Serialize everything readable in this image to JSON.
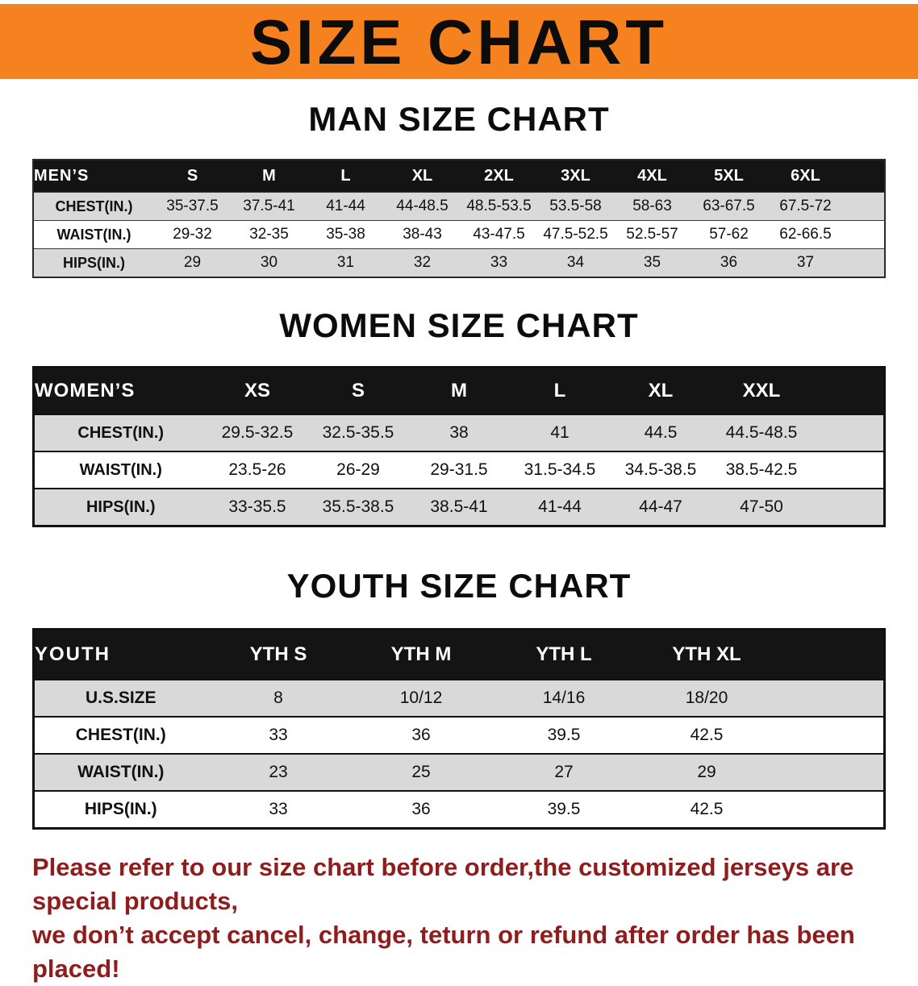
{
  "banner": {
    "title": "SIZE CHART"
  },
  "colors": {
    "banner_bg": "#F5821F",
    "header_bar": "#141414",
    "shaded_row": "#D9D9D9",
    "footer_text": "#8F1D1D"
  },
  "sections": [
    {
      "heading": "MAN SIZE CHART",
      "table_label": "MEN’S",
      "columns": [
        "S",
        "M",
        "L",
        "XL",
        "2XL",
        "3XL",
        "4XL",
        "5XL",
        "6XL"
      ],
      "rows": [
        {
          "label": "CHEST(IN.)",
          "values": [
            "35-37.5",
            "37.5-41",
            "41-44",
            "44-48.5",
            "48.5-53.5",
            "53.5-58",
            "58-63",
            "63-67.5",
            "67.5-72"
          ]
        },
        {
          "label": "WAIST(IN.)",
          "values": [
            "29-32",
            "32-35",
            "35-38",
            "38-43",
            "43-47.5",
            "47.5-52.5",
            "52.5-57",
            "57-62",
            "62-66.5"
          ]
        },
        {
          "label": "HIPS(IN.)",
          "values": [
            "29",
            "30",
            "31",
            "32",
            "33",
            "34",
            "35",
            "36",
            "37"
          ]
        }
      ]
    },
    {
      "heading": "WOMEN SIZE CHART",
      "table_label": "WOMEN’S",
      "columns": [
        "XS",
        "S",
        "M",
        "L",
        "XL",
        "XXL"
      ],
      "rows": [
        {
          "label": "CHEST(IN.)",
          "values": [
            "29.5-32.5",
            "32.5-35.5",
            "38",
            "41",
            "44.5",
            "44.5-48.5"
          ]
        },
        {
          "label": "WAIST(IN.)",
          "values": [
            "23.5-26",
            "26-29",
            "29-31.5",
            "31.5-34.5",
            "34.5-38.5",
            "38.5-42.5"
          ]
        },
        {
          "label": "HIPS(IN.)",
          "values": [
            "33-35.5",
            "35.5-38.5",
            "38.5-41",
            "41-44",
            "44-47",
            "47-50"
          ]
        }
      ]
    },
    {
      "heading": "YOUTH SIZE CHART",
      "table_label": "YOUTH",
      "columns": [
        "YTH S",
        "YTH M",
        "YTH L",
        "YTH XL"
      ],
      "rows": [
        {
          "label": "U.S.SIZE",
          "values": [
            "8",
            "10/12",
            "14/16",
            "18/20"
          ]
        },
        {
          "label": "CHEST(IN.)",
          "values": [
            "33",
            "36",
            "39.5",
            "42.5"
          ]
        },
        {
          "label": "WAIST(IN.)",
          "values": [
            "23",
            "25",
            "27",
            "29"
          ]
        },
        {
          "label": "HIPS(IN.)",
          "values": [
            "33",
            "36",
            "39.5",
            "42.5"
          ]
        }
      ]
    }
  ],
  "footer": {
    "line1": "Please refer to our size chart before order,the customized jerseys are special products,",
    "line2": "we don’t accept cancel, change, teturn or refund after order has been placed!"
  }
}
